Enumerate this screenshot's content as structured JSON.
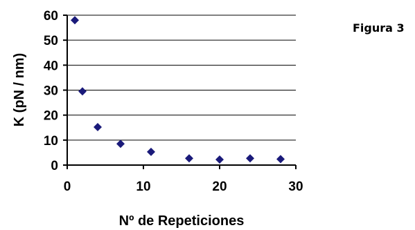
{
  "figure_label": "Figura 3",
  "chart_data": {
    "type": "scatter",
    "title": "",
    "xlabel": "Nº de Repeticiones",
    "ylabel": "K (pN / nm)",
    "xlim": [
      0,
      30
    ],
    "ylim": [
      0,
      60
    ],
    "x_ticks": [
      "0",
      "10",
      "20",
      "30"
    ],
    "y_ticks": [
      "0",
      "10",
      "20",
      "30",
      "40",
      "50",
      "60"
    ],
    "grid": "horizontal",
    "legend": "none",
    "marker_color": "#1a1a7a",
    "series": [
      {
        "x": [
          1,
          2,
          4,
          7,
          11,
          16,
          20,
          24,
          28
        ],
        "y": [
          58,
          29.5,
          15.2,
          8.5,
          5.3,
          2.7,
          2.2,
          2.7,
          2.4
        ]
      }
    ]
  }
}
